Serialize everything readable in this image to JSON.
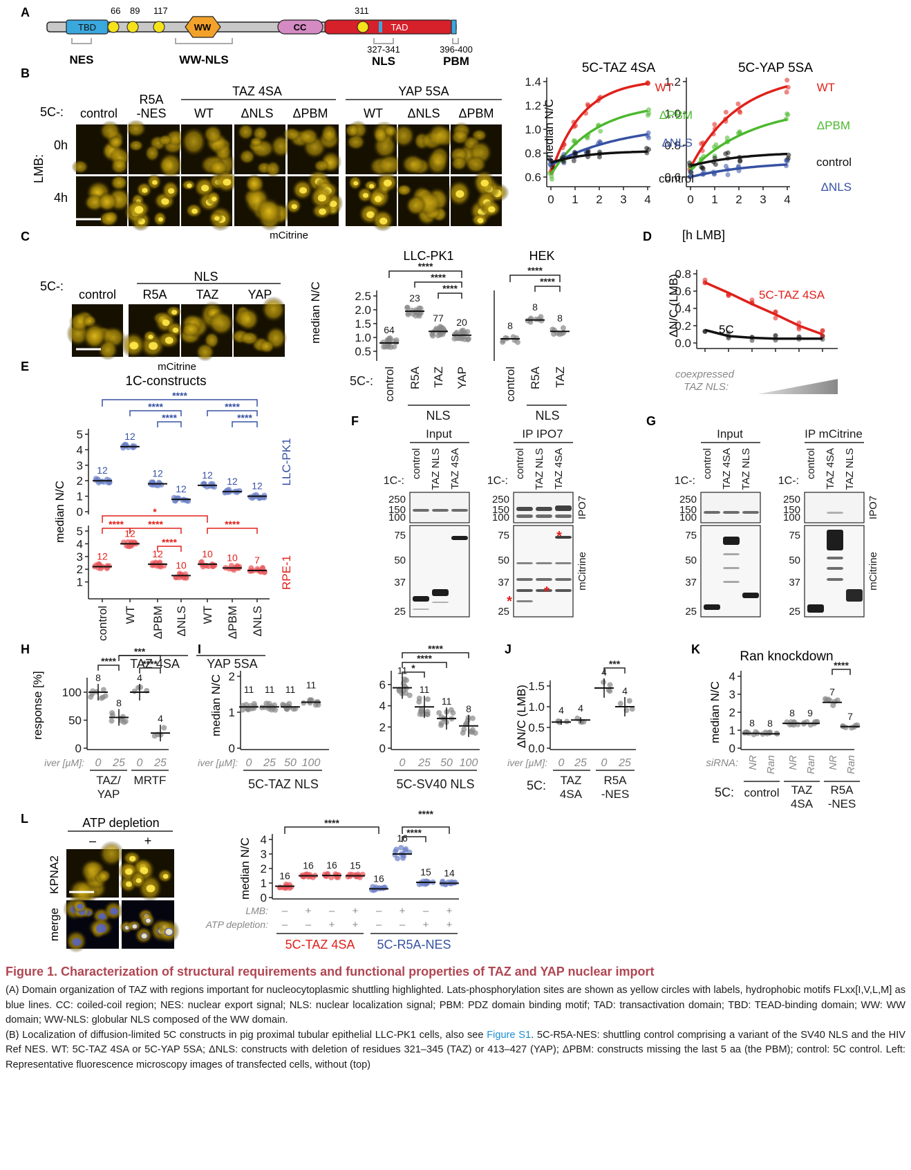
{
  "panel_letters": [
    "A",
    "B",
    "C",
    "D",
    "E",
    "F",
    "G",
    "H",
    "I",
    "J",
    "K",
    "L"
  ],
  "panelA": {
    "domains": {
      "tbd": "TBD",
      "ww": "WW",
      "cc": "CC",
      "tad": "TAD"
    },
    "sites": [
      "66",
      "89",
      "117",
      "311"
    ],
    "regions": {
      "nes": "NES",
      "wwnls": "WW-NLS",
      "nls_range": "327-341",
      "nls": "NLS",
      "pbm_range": "396-400",
      "pbm": "PBM"
    }
  },
  "panelB": {
    "prefix": "5C-:",
    "columns": [
      "control",
      "R5A",
      "-NES",
      "WT",
      "ΔNLS",
      "ΔPBM",
      "WT",
      "ΔNLS",
      "ΔPBM"
    ],
    "group_taz": "TAZ 4SA",
    "group_yap": "YAP 5SA",
    "lmb_label": "LMB:",
    "rows": [
      "0h",
      "4h"
    ],
    "micro_label": "mCitrine",
    "chart_titles": [
      "5C-TAZ 4SA",
      "5C-YAP 5SA"
    ],
    "ylabel": "median N/C",
    "xlabel": "[h LMB]",
    "left_ticks": [
      "1.4",
      "1.2",
      "1.0",
      "0.8",
      "0.6"
    ],
    "right_ticks": [
      "1.2",
      "1.0",
      "0.8",
      "0.6"
    ],
    "xticks": [
      "0",
      "1",
      "2",
      "3",
      "4"
    ],
    "labels_left": {
      "wt": "WT",
      "pbm": "ΔPBM",
      "nls": "ΔNLS",
      "control": "control"
    },
    "labels_right": {
      "wt": "WT",
      "pbm": "ΔPBM",
      "control": "control",
      "nls": "ΔNLS"
    }
  },
  "panelC": {
    "prefix": "5C-:",
    "nls_label": "NLS",
    "columns": [
      "control",
      "R5A",
      "TAZ",
      "YAP"
    ],
    "micro_label": "mCitrine",
    "chart_titles": [
      "LLC-PK1",
      "HEK"
    ],
    "ylabel": "median N/C",
    "yticks": [
      "2.5",
      "2.0",
      "1.5",
      "1.0",
      "0.5"
    ],
    "xcats_left": [
      "control",
      "R5A",
      "TAZ",
      "YAP"
    ],
    "xcats_right": [
      "control",
      "R5A",
      "TAZ"
    ],
    "group": "NLS",
    "n_left": [
      "64",
      "23",
      "77",
      "20"
    ],
    "n_right": [
      "8",
      "8",
      "8"
    ],
    "sig": "****"
  },
  "panelD": {
    "ylabel": "ΔN/C (LMB)",
    "yticks": [
      "0.8",
      "0.6",
      "0.4",
      "0.2",
      "0.0"
    ],
    "label_taz": "5C-TAZ 4SA",
    "label_5c": "5C",
    "xlabel1": "coexpressed",
    "xlabel2": "TAZ NLS:"
  },
  "panelE": {
    "title": "1C-constructs",
    "ylabel": "median N/C",
    "yticks": [
      "5",
      "4",
      "3",
      "2",
      "1",
      "0"
    ],
    "cell_top": "LLC-PK1",
    "cell_bottom": "RPE-1",
    "n_top": [
      "12",
      "12",
      "12",
      "12",
      "12",
      "12",
      "12"
    ],
    "n_bottom": [
      "12",
      "12",
      "12",
      "10",
      "10",
      "10",
      "7"
    ],
    "xcats": [
      "control",
      "WT",
      "ΔPBM",
      "ΔNLS",
      "WT",
      "ΔPBM",
      "ΔNLS"
    ],
    "groups": [
      "TAZ 4SA",
      "YAP 5SA"
    ],
    "sig4": "****",
    "sig1": "*"
  },
  "panelF": {
    "input": "Input",
    "ip": "IP IPO7",
    "lanes": [
      "control",
      "TAZ NLS",
      "TAZ 4SA"
    ],
    "prefix": "1C-:",
    "mw_top": [
      "250",
      "150",
      "100"
    ],
    "mw_bottom": [
      "75",
      "50",
      "37",
      "25"
    ],
    "blot_top": "IPO7",
    "blot_bottom": "mCitrine"
  },
  "panelG": {
    "input": "Input",
    "ip": "IP mCitrine",
    "lanes": [
      "control",
      "TAZ 4SA",
      "TAZ NLS"
    ],
    "prefix": "1C-:",
    "mw_top": [
      "250",
      "150",
      "100"
    ],
    "mw_bottom": [
      "75",
      "50",
      "37",
      "25"
    ],
    "blot_top": "IPO7",
    "blot_bottom": "mCitrine"
  },
  "panelH": {
    "ylabel": "response [%]",
    "yticks": [
      "100",
      "50",
      "0"
    ],
    "iver": "iver [µM]:",
    "doses": [
      "0",
      "25",
      "0",
      "25"
    ],
    "groups": [
      "TAZ/",
      "YAP",
      "MRTF"
    ],
    "n": [
      "8",
      "8",
      "4",
      "4"
    ],
    "sig": [
      "****",
      "****",
      "***"
    ]
  },
  "panelI": {
    "ylabel": "median N/C",
    "yticks_left": [
      "2",
      "1",
      "0"
    ],
    "yticks_right": [
      "6",
      "4",
      "2",
      "0"
    ],
    "iver": "iver [µM]:",
    "doses": [
      "0",
      "25",
      "50",
      "100"
    ],
    "n_left": [
      "11",
      "11",
      "11",
      "11"
    ],
    "n_right": [
      "11",
      "11",
      "11",
      "8"
    ],
    "groups": [
      "5C-TAZ NLS",
      "5C-SV40 NLS"
    ],
    "sig": [
      "****",
      "****",
      "*"
    ]
  },
  "panelJ": {
    "ylabel": "ΔN/C (LMB)",
    "yticks": [
      "1.5",
      "1.0",
      "0.5",
      "0.0"
    ],
    "iver": "iver [µM]:",
    "doses": [
      "0",
      "25",
      "0",
      "25"
    ],
    "prefix": "5C:",
    "groups": [
      "TAZ",
      "4SA",
      "R5A",
      "-NES"
    ],
    "n": [
      "4",
      "4",
      "4",
      "4"
    ],
    "sig": "***"
  },
  "panelK": {
    "title": "Ran knockdown",
    "ylabel": "median N/C",
    "yticks": [
      "4",
      "3",
      "2",
      "1",
      "0"
    ],
    "sirna": "siRNA:",
    "lanes": [
      "NR",
      "Ran",
      "NR",
      "Ran",
      "NR",
      "Ran"
    ],
    "prefix": "5C:",
    "groups": [
      "control",
      "TAZ",
      "4SA",
      "R5A",
      "-NES"
    ],
    "n": [
      "8",
      "8",
      "8",
      "9",
      "7",
      "7"
    ],
    "sig": "****"
  },
  "panelL": {
    "title": "ATP depletion",
    "minus": "–",
    "plus": "+",
    "row1": "KPNA2",
    "row2": "merge",
    "ylabel": "median N/C",
    "yticks": [
      "4",
      "3",
      "2",
      "1",
      "0"
    ],
    "lmb": "LMB:",
    "atp": "ATP depletion:",
    "lmb_signs": [
      "–",
      "+",
      "–",
      "+",
      "–",
      "+",
      "–",
      "+"
    ],
    "atp_signs": [
      "–",
      "–",
      "+",
      "+",
      "–",
      "–",
      "+",
      "+"
    ],
    "n": [
      "16",
      "16",
      "16",
      "15",
      "16",
      "16",
      "15",
      "14"
    ],
    "groups": [
      "5C-TAZ 4SA",
      "5C-R5A-NES"
    ],
    "sig": "****"
  },
  "caption": {
    "title": "Figure 1.  Characterization of structural requirements and functional properties of TAZ and YAP nuclear import",
    "pA": "(A) Domain organization of TAZ with regions important for nucleocytoplasmic shuttling highlighted. Lats-phosphorylation sites are shown as yellow circles with labels, hydrophobic motifs FLxx[I,V,L,M] as blue lines. CC: coiled-coil region; NES: nuclear export signal; NLS: nuclear localization signal; PBM: PDZ domain binding motif; TAD: transactivation domain; TBD: TEAD-binding domain; WW: WW domain; WW-NLS: globular NLS composed of the WW domain.",
    "pB1": "(B) Localization of diffusion-limited 5C constructs in pig proximal tubular epithelial LLC-PK1 cells, also see ",
    "pB_link": "Figure S1",
    "pB2": ". 5C-R5A-NES: shuttling control comprising a variant of the SV40 NLS and the HIV Ref NES. WT: 5C-TAZ 4SA or 5C-YAP 5SA; ΔNLS: constructs with deletion of residues 321–345 (TAZ) or 413–427 (YAP); ΔPBM: constructs missing the last 5 aa (the PBM); control: 5C control. Left: Representative fluorescence microscopy images of transfected cells, without (top)"
  }
}
